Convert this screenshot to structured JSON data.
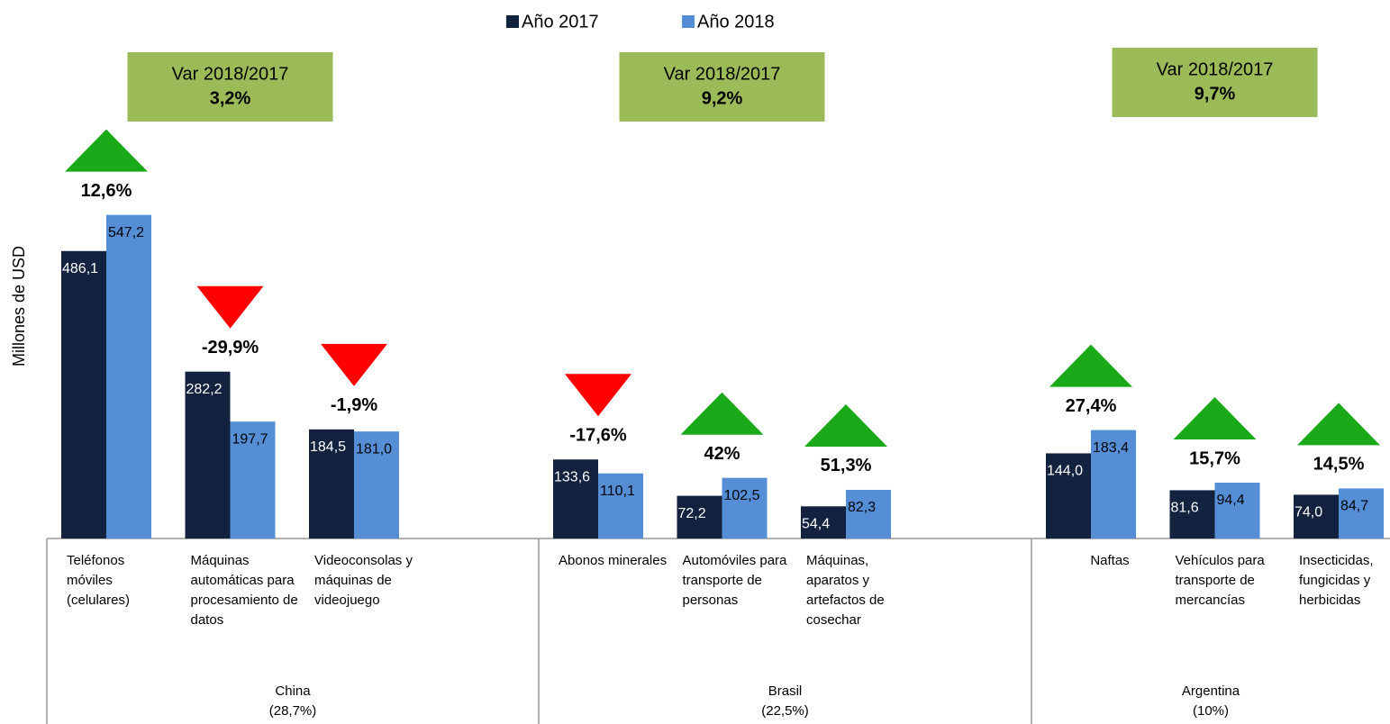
{
  "chart_data": {
    "type": "bar",
    "ylabel": "Millones de USD",
    "categories": [
      "Teléfonos móviles (celulares)",
      "Máquinas automáticas para procesamiento de datos",
      "Videoconsolas y máquinas de videojuego",
      "Abonos minerales",
      "Automóviles para transporte de personas",
      "Máquinas, aparatos y artefactos de cosechar",
      "Naftas",
      "Vehículos para transporte de mercancías",
      "Insecticidas, fungicidas y herbicidas"
    ],
    "series": [
      {
        "name": "Año 2017",
        "color": "#13223f",
        "values": [
          486.1,
          282.2,
          184.5,
          133.6,
          72.2,
          54.4,
          144.0,
          81.6,
          74.0
        ],
        "value_labels": [
          "486,1",
          "282,2",
          "184,5",
          "133,6",
          "72,2",
          "54,4",
          "144,0",
          "81,6",
          "74,0"
        ]
      },
      {
        "name": "Año 2018",
        "color": "#558ed5",
        "values": [
          547.2,
          197.7,
          181.0,
          110.1,
          102.5,
          82.3,
          183.4,
          94.4,
          84.7
        ],
        "value_labels": [
          "547,2",
          "197,7",
          "181,0",
          "110,1",
          "102,5",
          "82,3",
          "183,4",
          "94,4",
          "84,7"
        ]
      }
    ],
    "changes": [
      12.6,
      -29.9,
      -1.9,
      -17.6,
      42,
      51.3,
      27.4,
      15.7,
      14.5
    ],
    "change_labels": [
      "12,6%",
      "-29,9%",
      "-1,9%",
      "-17,6%",
      "42%",
      "51,3%",
      "27,4%",
      "15,7%",
      "14,5%"
    ],
    "change_colors": {
      "up": "#19a919",
      "down": "#ff0000"
    },
    "groups": [
      {
        "name": "China",
        "share": "(28,7%)",
        "variation_title": "Var 2018/2017",
        "variation": 3.2,
        "variation_label": "3,2%",
        "size": 3
      },
      {
        "name": "Brasil",
        "share": "(22,5%)",
        "variation_title": "Var 2018/2017",
        "variation": 9.2,
        "variation_label": "9,2%",
        "size": 3
      },
      {
        "name": "Argentina",
        "share": "(10%)",
        "variation_title": "Var 2018/2017",
        "variation": 9.7,
        "variation_label": "9,7%",
        "size": 3
      }
    ],
    "box_color": "#9bbb59",
    "ylim": [
      0,
      600
    ]
  }
}
